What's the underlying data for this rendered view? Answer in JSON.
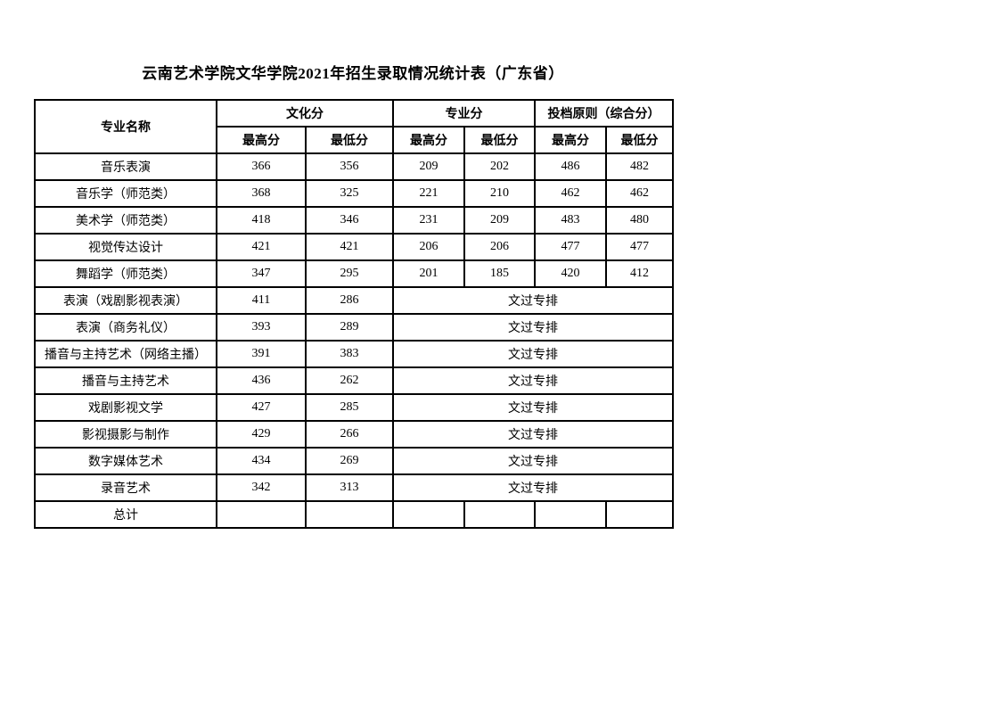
{
  "page": {
    "title": "云南艺术学院文华学院2021年招生录取情况统计表（广东省）"
  },
  "table": {
    "header": {
      "major": "专业名称",
      "groups": [
        {
          "label": "文化分",
          "sub": [
            "最高分",
            "最低分"
          ]
        },
        {
          "label": "专业分",
          "sub": [
            "最高分",
            "最低分"
          ]
        },
        {
          "label": "投档原则（综合分）",
          "sub": [
            "最高分",
            "最低分"
          ]
        }
      ]
    },
    "merged_note_colspan": 4,
    "rows": [
      {
        "major": "音乐表演",
        "values": [
          "366",
          "356",
          "209",
          "202",
          "486",
          "482"
        ],
        "merged": null
      },
      {
        "major": "音乐学（师范类）",
        "values": [
          "368",
          "325",
          "221",
          "210",
          "462",
          "462"
        ],
        "merged": null
      },
      {
        "major": "美术学（师范类）",
        "values": [
          "418",
          "346",
          "231",
          "209",
          "483",
          "480"
        ],
        "merged": null
      },
      {
        "major": "视觉传达设计",
        "values": [
          "421",
          "421",
          "206",
          "206",
          "477",
          "477"
        ],
        "merged": null
      },
      {
        "major": "舞蹈学（师范类）",
        "values": [
          "347",
          "295",
          "201",
          "185",
          "420",
          "412"
        ],
        "merged": null
      },
      {
        "major": "表演（戏剧影视表演）",
        "values": [
          "411",
          "286"
        ],
        "merged": "文过专排"
      },
      {
        "major": "表演（商务礼仪）",
        "values": [
          "393",
          "289"
        ],
        "merged": "文过专排"
      },
      {
        "major": "播音与主持艺术（网络主播）",
        "values": [
          "391",
          "383"
        ],
        "merged": "文过专排"
      },
      {
        "major": "播音与主持艺术",
        "values": [
          "436",
          "262"
        ],
        "merged": "文过专排"
      },
      {
        "major": "戏剧影视文学",
        "values": [
          "427",
          "285"
        ],
        "merged": "文过专排"
      },
      {
        "major": "影视摄影与制作",
        "values": [
          "429",
          "266"
        ],
        "merged": "文过专排"
      },
      {
        "major": "数字媒体艺术",
        "values": [
          "434",
          "269"
        ],
        "merged": "文过专排"
      },
      {
        "major": "录音艺术",
        "values": [
          "342",
          "313"
        ],
        "merged": "文过专排"
      },
      {
        "major": "总计",
        "values": [
          "",
          "",
          "",
          "",
          "",
          ""
        ],
        "merged": null
      }
    ]
  }
}
